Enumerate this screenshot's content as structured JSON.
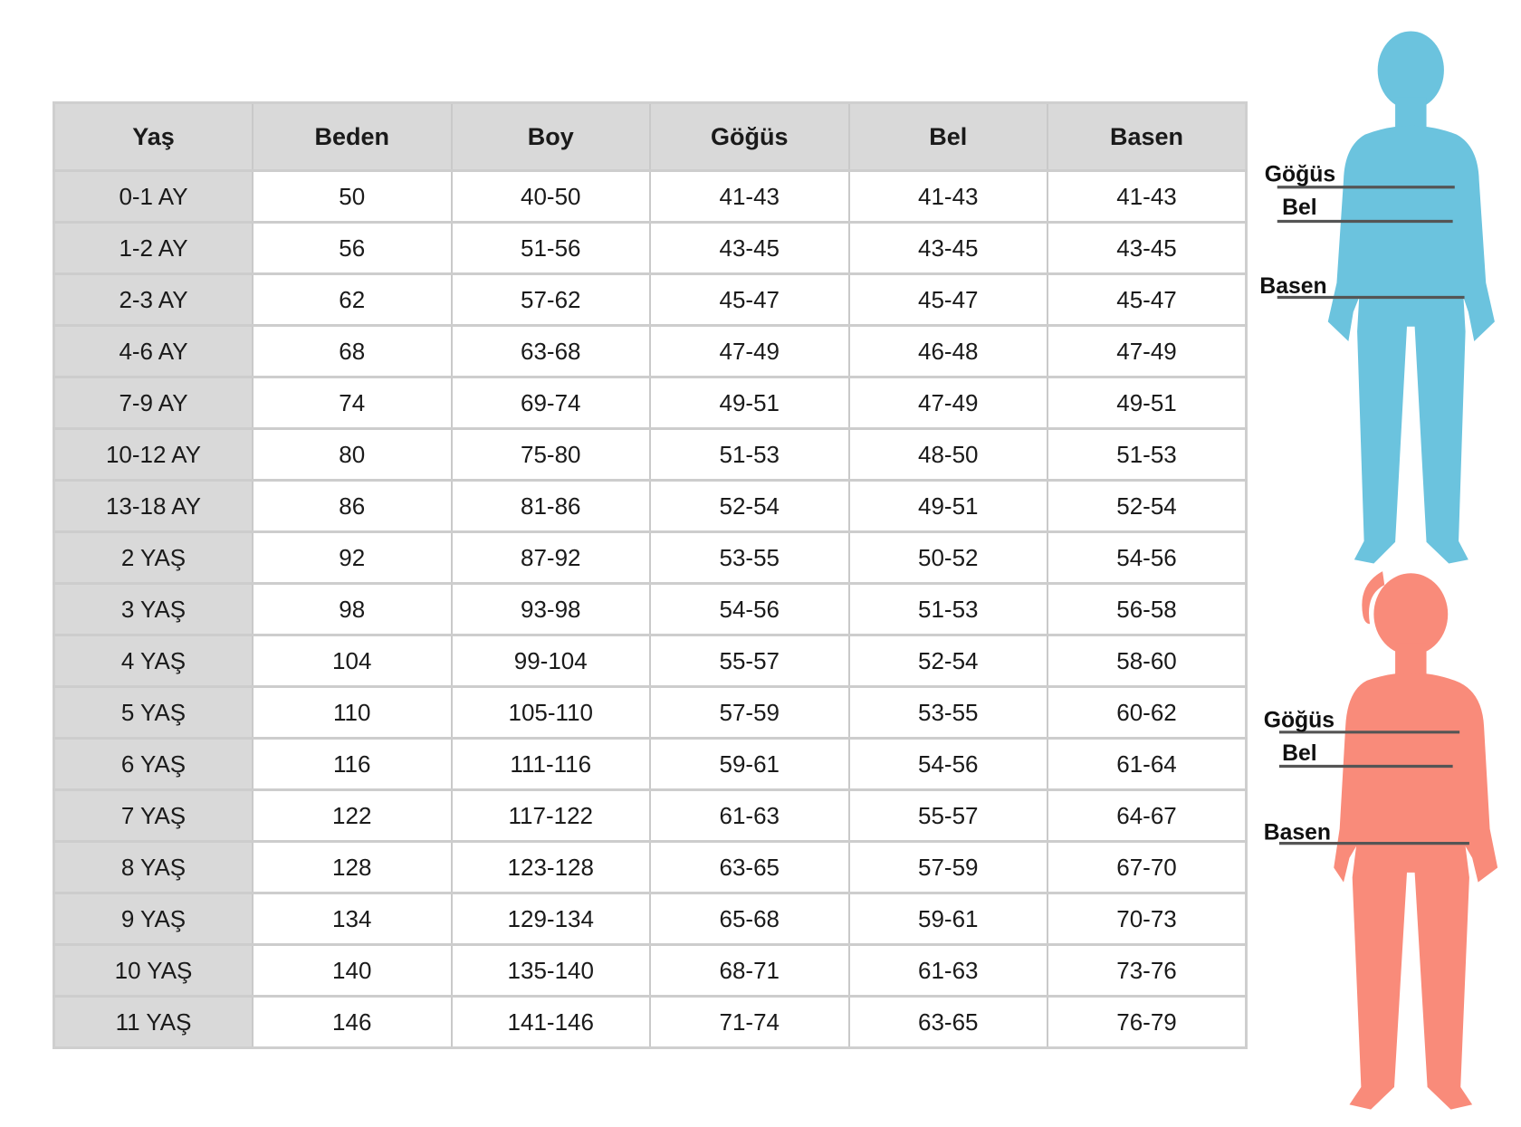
{
  "table": {
    "headers": [
      "Yaş",
      "Beden",
      "Boy",
      "Göğüs",
      "Bel",
      "Basen"
    ],
    "rows": [
      [
        "0-1 AY",
        "50",
        "40-50",
        "41-43",
        "41-43",
        "41-43"
      ],
      [
        "1-2 AY",
        "56",
        "51-56",
        "43-45",
        "43-45",
        "43-45"
      ],
      [
        "2-3 AY",
        "62",
        "57-62",
        "45-47",
        "45-47",
        "45-47"
      ],
      [
        "4-6 AY",
        "68",
        "63-68",
        "47-49",
        "46-48",
        "47-49"
      ],
      [
        "7-9 AY",
        "74",
        "69-74",
        "49-51",
        "47-49",
        "49-51"
      ],
      [
        "10-12 AY",
        "80",
        "75-80",
        "51-53",
        "48-50",
        "51-53"
      ],
      [
        "13-18 AY",
        "86",
        "81-86",
        "52-54",
        "49-51",
        "52-54"
      ],
      [
        "2 YAŞ",
        "92",
        "87-92",
        "53-55",
        "50-52",
        "54-56"
      ],
      [
        "3 YAŞ",
        "98",
        "93-98",
        "54-56",
        "51-53",
        "56-58"
      ],
      [
        "4 YAŞ",
        "104",
        "99-104",
        "55-57",
        "52-54",
        "58-60"
      ],
      [
        "5 YAŞ",
        "110",
        "105-110",
        "57-59",
        "53-55",
        "60-62"
      ],
      [
        "6 YAŞ",
        "116",
        "111-116",
        "59-61",
        "54-56",
        "61-64"
      ],
      [
        "7 YAŞ",
        "122",
        "117-122",
        "61-63",
        "55-57",
        "64-67"
      ],
      [
        "8 YAŞ",
        "128",
        "123-128",
        "63-65",
        "57-59",
        "67-70"
      ],
      [
        "9 YAŞ",
        "134",
        "129-134",
        "65-68",
        "59-61",
        "70-73"
      ],
      [
        "10 YAŞ",
        "140",
        "135-140",
        "68-71",
        "61-63",
        "73-76"
      ],
      [
        "11 YAŞ",
        "146",
        "141-146",
        "71-74",
        "63-65",
        "76-79"
      ]
    ]
  },
  "figures": {
    "boy": {
      "color": "#6bc3de",
      "labels": {
        "chest": "Göğüs",
        "waist": "Bel",
        "hip": "Basen"
      }
    },
    "girl": {
      "color": "#f98b7a",
      "labels": {
        "chest": "Göğüs",
        "waist": "Bel",
        "hip": "Basen"
      }
    }
  }
}
